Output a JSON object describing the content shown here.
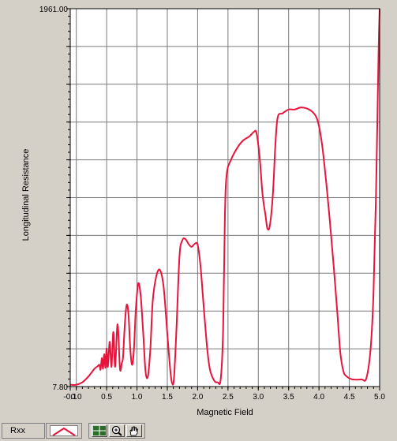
{
  "chart_data": {
    "type": "line",
    "xlabel": "Magnetic Field",
    "ylabel": "Longitudinal Resistance",
    "xlim": [
      -0.1,
      5.0
    ],
    "ylim": [
      7.8,
      1961.0
    ],
    "x_ticks": [
      "-0.1",
      "0.0",
      "0.5",
      "1.0",
      "1.5",
      "2.0",
      "2.5",
      "3.0",
      "3.5",
      "4.0",
      "4.5",
      "5.0"
    ],
    "x_tick_values": [
      -0.1,
      0.0,
      0.5,
      1.0,
      1.5,
      2.0,
      2.5,
      3.0,
      3.5,
      4.0,
      4.5,
      5.0
    ],
    "y_ticks": [
      "7.80",
      "1961.00"
    ],
    "y_tick_values": [
      7.8,
      1961.0
    ],
    "grid": true,
    "series": [
      {
        "name": "Rxx",
        "color": "#e8143c",
        "points": [
          [
            -0.1,
            17
          ],
          [
            0.0,
            17
          ],
          [
            0.1,
            30
          ],
          [
            0.2,
            60
          ],
          [
            0.3,
            100
          ],
          [
            0.35,
            112
          ],
          [
            0.38,
            120
          ],
          [
            0.4,
            95
          ],
          [
            0.42,
            155
          ],
          [
            0.44,
            100
          ],
          [
            0.46,
            175
          ],
          [
            0.48,
            105
          ],
          [
            0.5,
            205
          ],
          [
            0.52,
            110
          ],
          [
            0.55,
            240
          ],
          [
            0.58,
            110
          ],
          [
            0.61,
            290
          ],
          [
            0.64,
            110
          ],
          [
            0.68,
            330
          ],
          [
            0.72,
            100
          ],
          [
            0.75,
            130
          ],
          [
            0.77,
            160
          ],
          [
            0.8,
            330
          ],
          [
            0.83,
            430
          ],
          [
            0.86,
            380
          ],
          [
            0.89,
            200
          ],
          [
            0.92,
            120
          ],
          [
            0.95,
            200
          ],
          [
            0.98,
            400
          ],
          [
            1.02,
            540
          ],
          [
            1.06,
            480
          ],
          [
            1.1,
            300
          ],
          [
            1.14,
            90
          ],
          [
            1.18,
            60
          ],
          [
            1.22,
            200
          ],
          [
            1.26,
            450
          ],
          [
            1.32,
            580
          ],
          [
            1.38,
            610
          ],
          [
            1.44,
            520
          ],
          [
            1.5,
            280
          ],
          [
            1.55,
            90
          ],
          [
            1.58,
            25
          ],
          [
            1.61,
            50
          ],
          [
            1.65,
            300
          ],
          [
            1.7,
            680
          ],
          [
            1.75,
            765
          ],
          [
            1.8,
            770
          ],
          [
            1.85,
            745
          ],
          [
            1.9,
            730
          ],
          [
            1.95,
            745
          ],
          [
            2.0,
            740
          ],
          [
            2.05,
            620
          ],
          [
            2.1,
            420
          ],
          [
            2.15,
            230
          ],
          [
            2.2,
            100
          ],
          [
            2.27,
            40
          ],
          [
            2.33,
            30
          ],
          [
            2.38,
            45
          ],
          [
            2.42,
            300
          ],
          [
            2.45,
            900
          ],
          [
            2.48,
            1108
          ],
          [
            2.55,
            1180
          ],
          [
            2.65,
            1240
          ],
          [
            2.75,
            1280
          ],
          [
            2.85,
            1300
          ],
          [
            2.93,
            1325
          ],
          [
            2.97,
            1318
          ],
          [
            3.02,
            1200
          ],
          [
            3.07,
            1000
          ],
          [
            3.12,
            890
          ],
          [
            3.15,
            825
          ],
          [
            3.19,
            840
          ],
          [
            3.24,
            1000
          ],
          [
            3.28,
            1250
          ],
          [
            3.32,
            1400
          ],
          [
            3.4,
            1420
          ],
          [
            3.5,
            1440
          ],
          [
            3.6,
            1440
          ],
          [
            3.7,
            1450
          ],
          [
            3.8,
            1445
          ],
          [
            3.9,
            1425
          ],
          [
            3.98,
            1380
          ],
          [
            4.05,
            1260
          ],
          [
            4.12,
            1060
          ],
          [
            4.18,
            860
          ],
          [
            4.24,
            640
          ],
          [
            4.3,
            400
          ],
          [
            4.35,
            190
          ],
          [
            4.4,
            90
          ],
          [
            4.45,
            62
          ],
          [
            4.55,
            45
          ],
          [
            4.7,
            45
          ],
          [
            4.78,
            50
          ],
          [
            4.85,
            200
          ],
          [
            4.9,
            500
          ],
          [
            4.94,
            1000
          ],
          [
            4.98,
            1700
          ],
          [
            5.0,
            1960
          ]
        ]
      }
    ],
    "legend": {
      "position": "bottom-left",
      "label": "Rxx"
    }
  },
  "icons": {
    "cursor_tool": "crosshair-cursor-icon",
    "zoom_tool": "zoom-magnifier-icon",
    "pan_tool": "pan-hand-icon"
  }
}
